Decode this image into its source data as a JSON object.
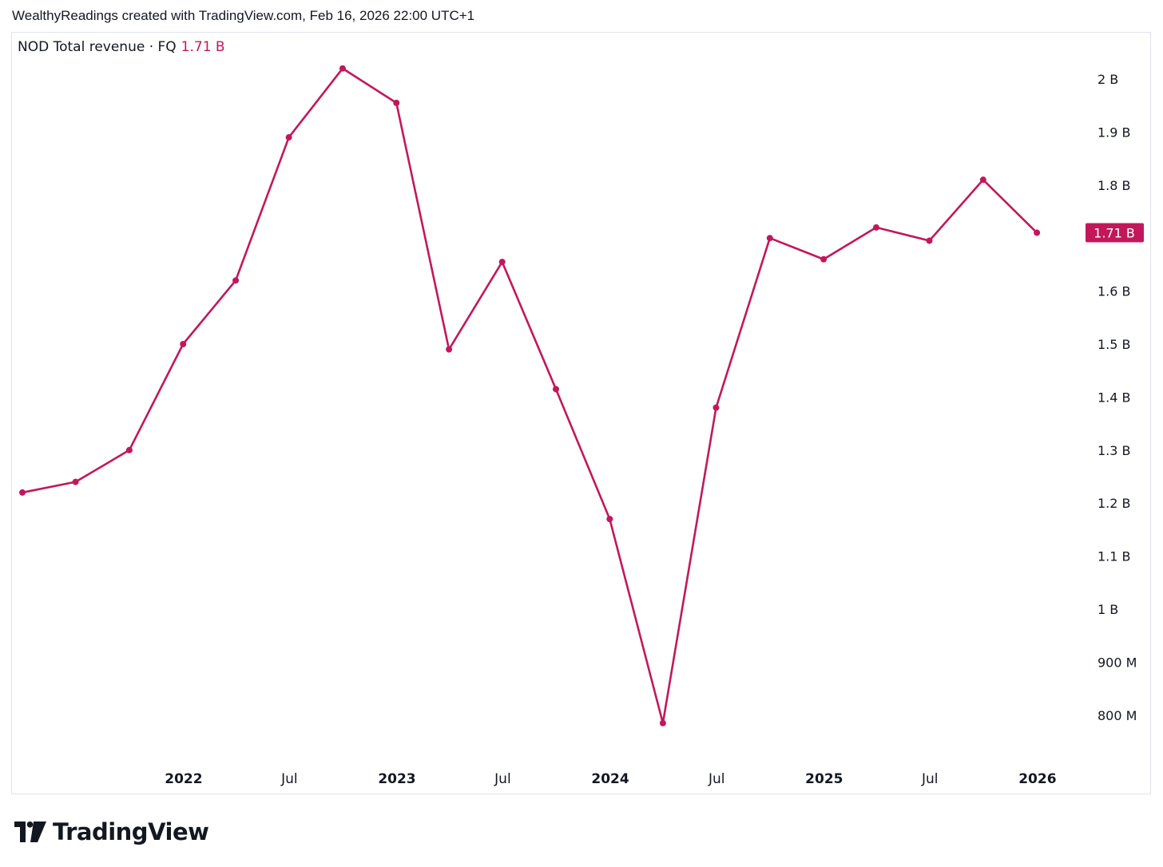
{
  "header": {
    "attribution": "WealthyReadings created with TradingView.com, Feb 16, 2026 22:00 UTC+1"
  },
  "legend": {
    "label": "NOD Total revenue · FQ",
    "value": "1.71 B"
  },
  "branding": {
    "logo_text": "TradingView"
  },
  "colors": {
    "series": "#c2185b",
    "text": "#131722",
    "border": "#e0e3eb"
  },
  "chart_data": {
    "type": "line",
    "title": "NOD Total revenue · FQ",
    "series": [
      {
        "name": "NOD Total revenue · FQ",
        "color": "#c2185b",
        "points": [
          {
            "x": "2021-03-31",
            "y": 1.22
          },
          {
            "x": "2021-06-30",
            "y": 1.24
          },
          {
            "x": "2021-09-30",
            "y": 1.3
          },
          {
            "x": "2021-12-31",
            "y": 1.5
          },
          {
            "x": "2022-03-31",
            "y": 1.62
          },
          {
            "x": "2022-06-30",
            "y": 1.89
          },
          {
            "x": "2022-09-30",
            "y": 2.02
          },
          {
            "x": "2022-12-31",
            "y": 1.955
          },
          {
            "x": "2023-03-31",
            "y": 1.49
          },
          {
            "x": "2023-06-30",
            "y": 1.655
          },
          {
            "x": "2023-09-30",
            "y": 1.415
          },
          {
            "x": "2023-12-31",
            "y": 1.17
          },
          {
            "x": "2024-03-31",
            "y": 0.785
          },
          {
            "x": "2024-06-30",
            "y": 1.38
          },
          {
            "x": "2024-09-30",
            "y": 1.7
          },
          {
            "x": "2024-12-31",
            "y": 1.66
          },
          {
            "x": "2025-03-31",
            "y": 1.72
          },
          {
            "x": "2025-06-30",
            "y": 1.695
          },
          {
            "x": "2025-09-30",
            "y": 1.81
          },
          {
            "x": "2025-12-31",
            "y": 1.71
          }
        ]
      }
    ],
    "y_unit": "B",
    "ylim": [
      0.7,
      2.1
    ],
    "y_ticks": [
      {
        "value": 2.0,
        "label": "2 B"
      },
      {
        "value": 1.9,
        "label": "1.9 B"
      },
      {
        "value": 1.8,
        "label": "1.8 B"
      },
      {
        "value": 1.6,
        "label": "1.6 B"
      },
      {
        "value": 1.5,
        "label": "1.5 B"
      },
      {
        "value": 1.4,
        "label": "1.4 B"
      },
      {
        "value": 1.3,
        "label": "1.3 B"
      },
      {
        "value": 1.2,
        "label": "1.2 B"
      },
      {
        "value": 1.1,
        "label": "1.1 B"
      },
      {
        "value": 1.0,
        "label": "1 B"
      },
      {
        "value": 0.9,
        "label": "900 M"
      },
      {
        "value": 0.8,
        "label": "800 M"
      }
    ],
    "x_ticks": [
      {
        "value": "2022-01-01",
        "label": "2022",
        "bold": true
      },
      {
        "value": "2022-07-01",
        "label": "Jul",
        "bold": false
      },
      {
        "value": "2023-01-01",
        "label": "2023",
        "bold": true
      },
      {
        "value": "2023-07-01",
        "label": "Jul",
        "bold": false
      },
      {
        "value": "2024-01-01",
        "label": "2024",
        "bold": true
      },
      {
        "value": "2024-07-01",
        "label": "Jul",
        "bold": false
      },
      {
        "value": "2025-01-01",
        "label": "2025",
        "bold": true
      },
      {
        "value": "2025-07-01",
        "label": "Jul",
        "bold": false
      },
      {
        "value": "2026-01-01",
        "label": "2026",
        "bold": true
      }
    ],
    "last_value": {
      "value": 1.71,
      "label": "1.71 B"
    },
    "grid": false,
    "y_axis_position": "right"
  }
}
